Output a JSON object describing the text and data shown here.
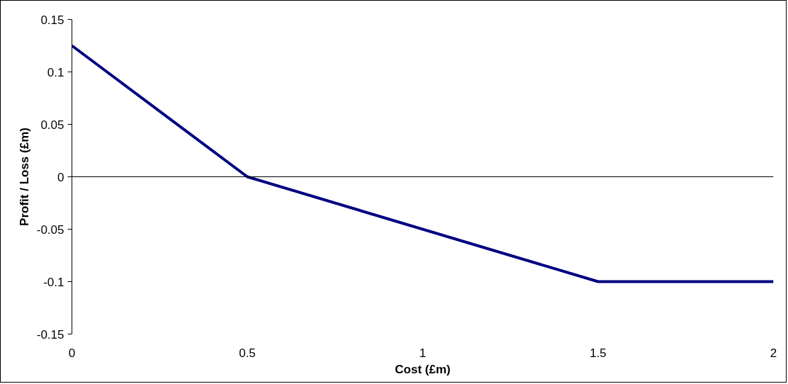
{
  "chart_data": {
    "type": "line",
    "xlabel": "Cost (£m)",
    "ylabel": "Profit / Loss (£m)",
    "x": [
      0,
      0.5,
      1.5,
      2
    ],
    "series": [
      {
        "color": "#000080",
        "values": [
          0.125,
          0,
          -0.1,
          -0.1
        ]
      }
    ],
    "xlim": [
      0,
      2
    ],
    "xticks": [
      0,
      0.5,
      1,
      1.5,
      2
    ],
    "ylim": [
      -0.15,
      0.15
    ],
    "yticks": [
      -0.15,
      -0.1,
      -0.05,
      0,
      0.05,
      0.1,
      0.15
    ],
    "ref_lines": [
      {
        "axis": "y",
        "value": 0,
        "color": "#000000"
      }
    ],
    "grid": false,
    "marker": "none",
    "line_style": "solid"
  }
}
